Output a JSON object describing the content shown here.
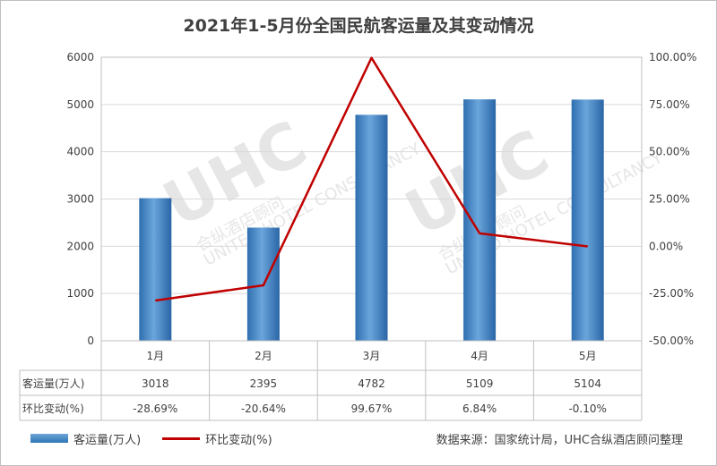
{
  "chart_data": {
    "type": "bar+line",
    "title": "2021年1-5月份全国民航客运量及其变动情况",
    "categories": [
      "1月",
      "2月",
      "3月",
      "4月",
      "5月"
    ],
    "series": [
      {
        "name": "客运量(万人)",
        "type": "bar",
        "axis": "left",
        "color": "#2e75b6",
        "values": [
          3018,
          2395,
          4782,
          5109,
          5104
        ]
      },
      {
        "name": "环比变动(%)",
        "type": "line",
        "axis": "right",
        "color": "#c00000",
        "values": [
          -28.69,
          -20.64,
          99.67,
          6.84,
          -0.1
        ]
      }
    ],
    "y_left": {
      "min": 0,
      "max": 6000,
      "step": 1000,
      "ticks": [
        "0",
        "1000",
        "2000",
        "3000",
        "4000",
        "5000",
        "6000"
      ]
    },
    "y_right": {
      "min": -50,
      "max": 100,
      "step": 25,
      "ticks": [
        "-50.00%",
        "-25.00%",
        "0.00%",
        "25.00%",
        "50.00%",
        "75.00%",
        "100.00%"
      ]
    },
    "grid": true,
    "table": {
      "rows": [
        {
          "label": "客运量(万人)",
          "cells": [
            "3018",
            "2395",
            "4782",
            "5109",
            "5104"
          ]
        },
        {
          "label": "环比变动(%)",
          "cells": [
            "-28.69%",
            "-20.64%",
            "99.67%",
            "6.84%",
            "-0.10%"
          ]
        }
      ]
    },
    "legend_placement": "bottom-left",
    "source": "数据来源：国家统计局，UHC合纵酒店顾问整理"
  },
  "watermark": {
    "logo": "UHC",
    "text_cn": "合纵酒店顾问",
    "text_en": "UNITED HOTEL CONSULTANCY"
  }
}
